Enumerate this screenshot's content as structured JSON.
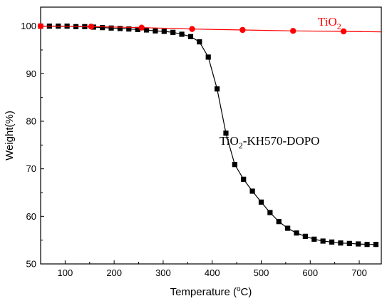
{
  "chart_data": {
    "type": "line",
    "xlabel": "Temperature (",
    "xlabel_unit": "o",
    "xlabel_tail": "C)",
    "ylabel": "Weight(%)",
    "xlim": [
      50,
      745
    ],
    "ylim": [
      50,
      104
    ],
    "x_ticks": [
      100,
      200,
      300,
      400,
      500,
      600,
      700
    ],
    "y_ticks": [
      50,
      60,
      70,
      80,
      90,
      100
    ],
    "grid": false,
    "legend": "inline-labels",
    "series": [
      {
        "name": "TiO2-KH570-DOPO",
        "label_main": "TiO",
        "label_sub": "2",
        "label_tail": "-KH570-DOPO",
        "color": "#000000",
        "marker": "square",
        "x": [
          50,
          68,
          86,
          104,
          122,
          140,
          158,
          176,
          194,
          212,
          230,
          248,
          266,
          284,
          302,
          320,
          338,
          356,
          374,
          392,
          410,
          428,
          446,
          464,
          482,
          500,
          518,
          536,
          554,
          572,
          590,
          608,
          626,
          644,
          662,
          680,
          698,
          716,
          734
        ],
        "y": [
          100.0,
          100.0,
          100.0,
          100.0,
          99.9,
          99.9,
          99.8,
          99.7,
          99.6,
          99.5,
          99.4,
          99.3,
          99.2,
          99.0,
          98.9,
          98.7,
          98.3,
          97.8,
          96.7,
          93.5,
          86.8,
          77.5,
          70.9,
          67.8,
          65.3,
          63.0,
          60.8,
          58.9,
          57.5,
          56.5,
          55.8,
          55.2,
          54.8,
          54.6,
          54.4,
          54.3,
          54.2,
          54.1,
          54.1
        ]
      },
      {
        "name": "TiO2",
        "label_main": "TiO",
        "label_sub": "2",
        "label_tail": "",
        "color": "#ff0000",
        "marker": "circle",
        "x": [
          50,
          153,
          256,
          359,
          462,
          565,
          668
        ],
        "y": [
          100.0,
          99.9,
          99.7,
          99.4,
          99.2,
          99.0,
          98.9
        ],
        "line_end": [
          745,
          98.8
        ]
      }
    ]
  }
}
